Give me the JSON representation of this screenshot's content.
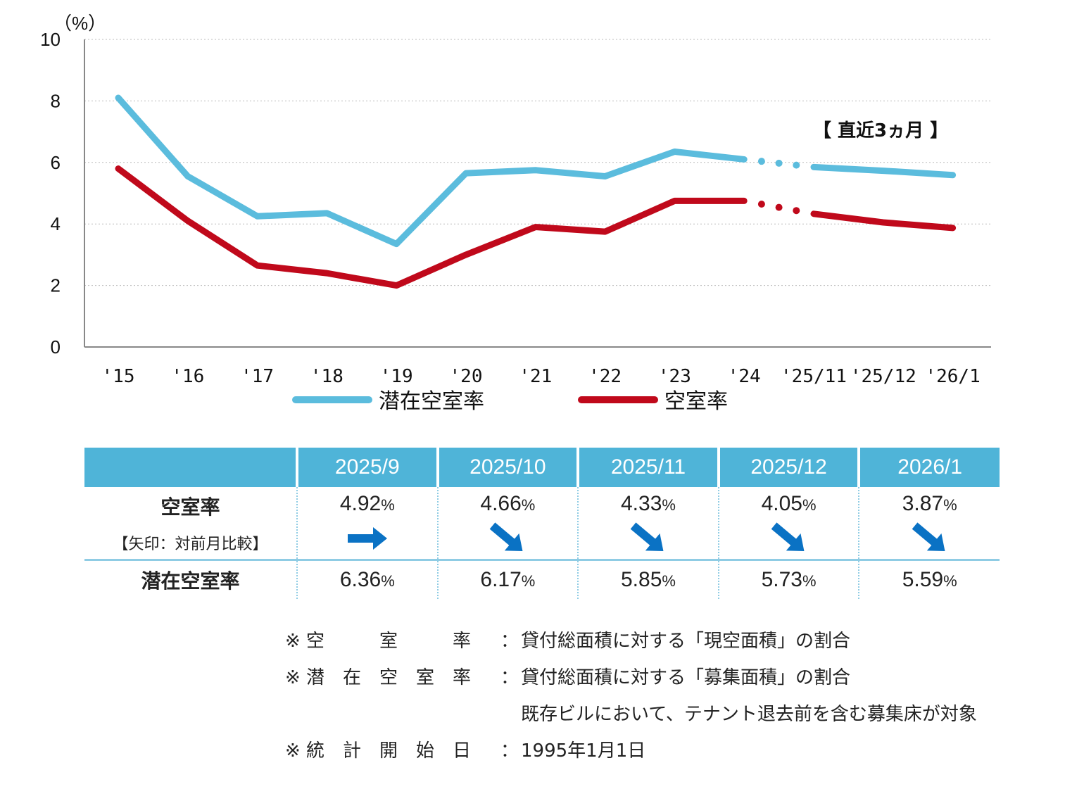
{
  "chart_data": {
    "type": "line",
    "y_unit": "（%）",
    "ylim": [
      0,
      10
    ],
    "y_ticks": [
      "0",
      "2",
      "4",
      "6",
      "8",
      "10"
    ],
    "categories": [
      "'15",
      "'16",
      "'17",
      "'18",
      "'19",
      "'20",
      "'21",
      "'22",
      "'23",
      "'24",
      "'25/11",
      "'25/12",
      "'26/1"
    ],
    "series": [
      {
        "name": "潜在空室率",
        "color": "#5bbcdd",
        "values": [
          8.1,
          5.55,
          4.25,
          4.35,
          3.35,
          5.65,
          5.75,
          5.55,
          6.35,
          6.1,
          5.85,
          5.73,
          5.59
        ]
      },
      {
        "name": "空室率",
        "color": "#c0091b",
        "values": [
          5.8,
          4.1,
          2.65,
          2.4,
          2.0,
          3.0,
          3.9,
          3.75,
          4.75,
          4.75,
          4.33,
          4.05,
          3.87
        ]
      }
    ],
    "annotation": "【 直近3ヵ月 】",
    "gridlines": "dotted horizontal",
    "legend_position": "bottom"
  },
  "table": {
    "headers": [
      "",
      "2025/9",
      "2025/10",
      "2025/11",
      "2025/12",
      "2026/1"
    ],
    "vacancy": {
      "title": "空室率",
      "subtitle": "【矢印：対前月比較】",
      "values": [
        "4.92",
        "4.66",
        "4.33",
        "4.05",
        "3.87"
      ],
      "arrows": [
        "flat",
        "down",
        "down",
        "down",
        "down"
      ],
      "arrow_color": "#0a72c4"
    },
    "potential": {
      "title": "潜在空室率",
      "values": [
        "6.36",
        "6.17",
        "5.85",
        "5.73",
        "5.59"
      ]
    },
    "pct_symbol": "%"
  },
  "notes": [
    {
      "key": "※ 空　　　室　　　率",
      "colon": "：",
      "text": "貸付総面積に対する「現空面積」の割合"
    },
    {
      "key": "※ 潜　在　空　室　率",
      "colon": "：",
      "text": "貸付総面積に対する「募集面積」の割合"
    },
    {
      "key": "",
      "colon": "",
      "text": "既存ビルにおいて、テナント退去前を含む募集床が対象"
    },
    {
      "key": "※ 統　計　開　始　日",
      "colon": "：",
      "text": "1995年1月1日"
    }
  ]
}
